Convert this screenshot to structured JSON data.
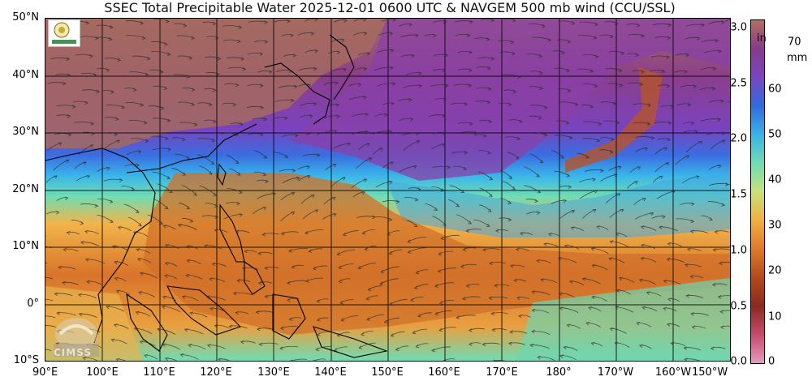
{
  "title": "SSEC Total Precipitable Water  2025-12-01 0600 UTC & NAVGEM 500 mb wind (CCU/SSL)",
  "latitude_labels": [
    "50°N",
    "40°N",
    "30°N",
    "20°N",
    "10°N",
    "0°",
    "10°S"
  ],
  "longitude_labels": [
    "90°E",
    "100°E",
    "110°E",
    "120°E",
    "130°E",
    "140°E",
    "150°E",
    "160°E",
    "170°E",
    "180°",
    "170°W",
    "160°W",
    "150°W"
  ],
  "colorbar": {
    "inch_unit": "in",
    "inch_labels": [
      "3.0",
      "2.5",
      "2.0",
      "1.5",
      "1.0",
      "0.5",
      "0.0"
    ],
    "mm_unit": "mm",
    "mm_labels": [
      "70",
      "60",
      "50",
      "40",
      "30",
      "20",
      "10",
      "0"
    ],
    "colors": [
      "#b07060",
      "#8a3a8a",
      "#7a45c0",
      "#2f6be0",
      "#39b3e8",
      "#6fdcb4",
      "#c8e27a",
      "#f0b040",
      "#e07a2a",
      "#b24a1a",
      "#8a2a20",
      "#c84a6a",
      "#e49ac0"
    ]
  },
  "logos": {
    "cimss_text": "CIMSS"
  }
}
